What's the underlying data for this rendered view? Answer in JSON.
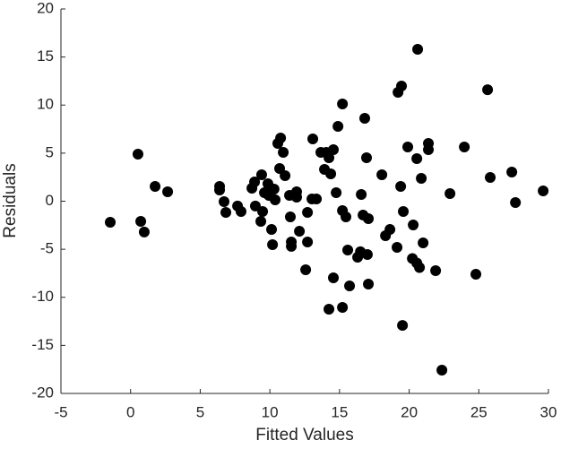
{
  "chart_data": {
    "type": "scatter",
    "xlabel": "Fitted Values",
    "ylabel": "Residuals",
    "color": "#000000",
    "xlim": [
      -5,
      30
    ],
    "ylim": [
      -20,
      20
    ],
    "xticks": [
      -5,
      0,
      5,
      10,
      15,
      20,
      25,
      30
    ],
    "yticks": [
      -20,
      -15,
      -10,
      -5,
      0,
      5,
      10,
      15,
      20
    ],
    "x": [
      -1.46,
      0.53,
      0.73,
      0.98,
      1.76,
      2.66,
      6.39,
      6.39,
      6.71,
      6.84,
      7.68,
      7.93,
      8.71,
      8.9,
      8.96,
      9.41,
      9.35,
      9.48,
      9.61,
      9.86,
      9.93,
      10.06,
      10.3,
      10.12,
      10.19,
      10.38,
      10.57,
      10.77,
      10.7,
      10.96,
      11.09,
      11.41,
      11.47,
      11.54,
      11.54,
      11.92,
      11.92,
      12.12,
      12.57,
      12.7,
      12.7,
      13.02,
      13.08,
      13.34,
      13.66,
      13.92,
      14.05,
      14.24,
      14.37,
      14.56,
      14.24,
      14.56,
      14.76,
      14.89,
      15.21,
      15.21,
      15.21,
      15.46,
      15.59,
      15.72,
      16.3,
      16.5,
      16.56,
      16.69,
      16.81,
      16.94,
      17.0,
      17.07,
      17.07,
      18.04,
      18.3,
      18.62,
      19.13,
      19.2,
      19.39,
      19.45,
      19.58,
      19.52,
      19.9,
      20.23,
      20.29,
      20.55,
      20.55,
      20.61,
      20.74,
      20.87,
      21.0,
      21.38,
      21.38,
      21.9,
      22.35,
      22.93,
      23.96,
      24.79,
      25.63,
      25.82,
      27.37,
      27.63,
      29.62
    ],
    "values": [
      -2.19,
      4.9,
      -2.1,
      -3.2,
      1.54,
      0.98,
      1.54,
      1.17,
      -0.05,
      -1.17,
      -0.5,
      -1.07,
      1.35,
      2.0,
      -0.5,
      2.75,
      -2.1,
      -1.07,
      0.89,
      1.82,
      0.6,
      1.07,
      1.26,
      -2.94,
      -4.52,
      0.14,
      6.01,
      6.57,
      3.4,
      5.08,
      2.66,
      0.61,
      -1.63,
      -4.24,
      -4.7,
      0.98,
      0.42,
      -3.12,
      -7.13,
      -1.17,
      -4.24,
      0.23,
      6.48,
      0.23,
      5.08,
      3.31,
      5.08,
      4.52,
      2.84,
      5.36,
      -11.24,
      -7.97,
      0.89,
      7.79,
      10.12,
      -0.98,
      -11.05,
      -1.63,
      -5.08,
      -8.81,
      -5.83,
      -5.26,
      0.7,
      -1.44,
      8.62,
      4.52,
      -5.55,
      -1.82,
      -8.62,
      2.75,
      -3.59,
      -2.94,
      -4.8,
      11.33,
      1.54,
      11.98,
      -1.07,
      -12.92,
      5.64,
      -5.97,
      -2.47,
      -6.43,
      4.43,
      15.8,
      -6.9,
      2.38,
      -4.34,
      6.01,
      5.36,
      -7.23,
      -17.58,
      0.79,
      5.64,
      -7.6,
      11.6,
      2.47,
      3.03,
      -0.14,
      1.07
    ]
  }
}
